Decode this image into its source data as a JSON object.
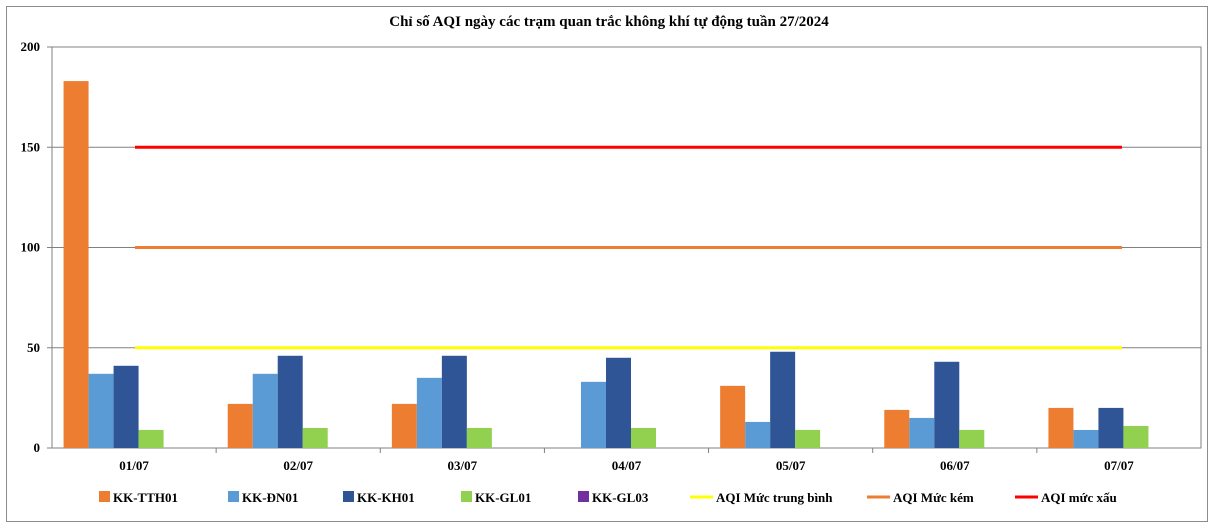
{
  "chart_data": {
    "type": "bar",
    "title": "Chỉ số AQI ngày các trạm quan trắc không khí tự động tuần 27/2024",
    "categories": [
      "01/07",
      "02/07",
      "03/07",
      "04/07",
      "05/07",
      "06/07",
      "07/07"
    ],
    "ylim": [
      0,
      200
    ],
    "yticks": [
      0,
      50,
      100,
      150,
      200
    ],
    "grid": true,
    "legend_position": "bottom",
    "series": [
      {
        "name": "KK-TTH01",
        "type": "bar",
        "color": "#ed7d31",
        "values": [
          183,
          22,
          22,
          null,
          31,
          19,
          20
        ]
      },
      {
        "name": "KK-ĐN01",
        "type": "bar",
        "color": "#5b9bd5",
        "values": [
          37,
          37,
          35,
          33,
          13,
          15,
          9
        ]
      },
      {
        "name": "KK-KH01",
        "type": "bar",
        "color": "#2f5597",
        "values": [
          41,
          46,
          46,
          45,
          48,
          43,
          20
        ]
      },
      {
        "name": "KK-GL01",
        "type": "bar",
        "color": "#92d050",
        "values": [
          9,
          10,
          10,
          10,
          9,
          9,
          11
        ]
      },
      {
        "name": "KK-GL03",
        "type": "bar",
        "color": "#7030a0",
        "values": [
          null,
          null,
          null,
          null,
          null,
          null,
          null
        ]
      },
      {
        "name": "AQI Mức trung bình",
        "type": "line",
        "color": "#ffff00",
        "value": 50
      },
      {
        "name": "AQI Mức kém",
        "type": "line",
        "color": "#ed7d31",
        "value": 100
      },
      {
        "name": "AQI mức xấu",
        "type": "line",
        "color": "#ff0000",
        "value": 150
      }
    ]
  }
}
